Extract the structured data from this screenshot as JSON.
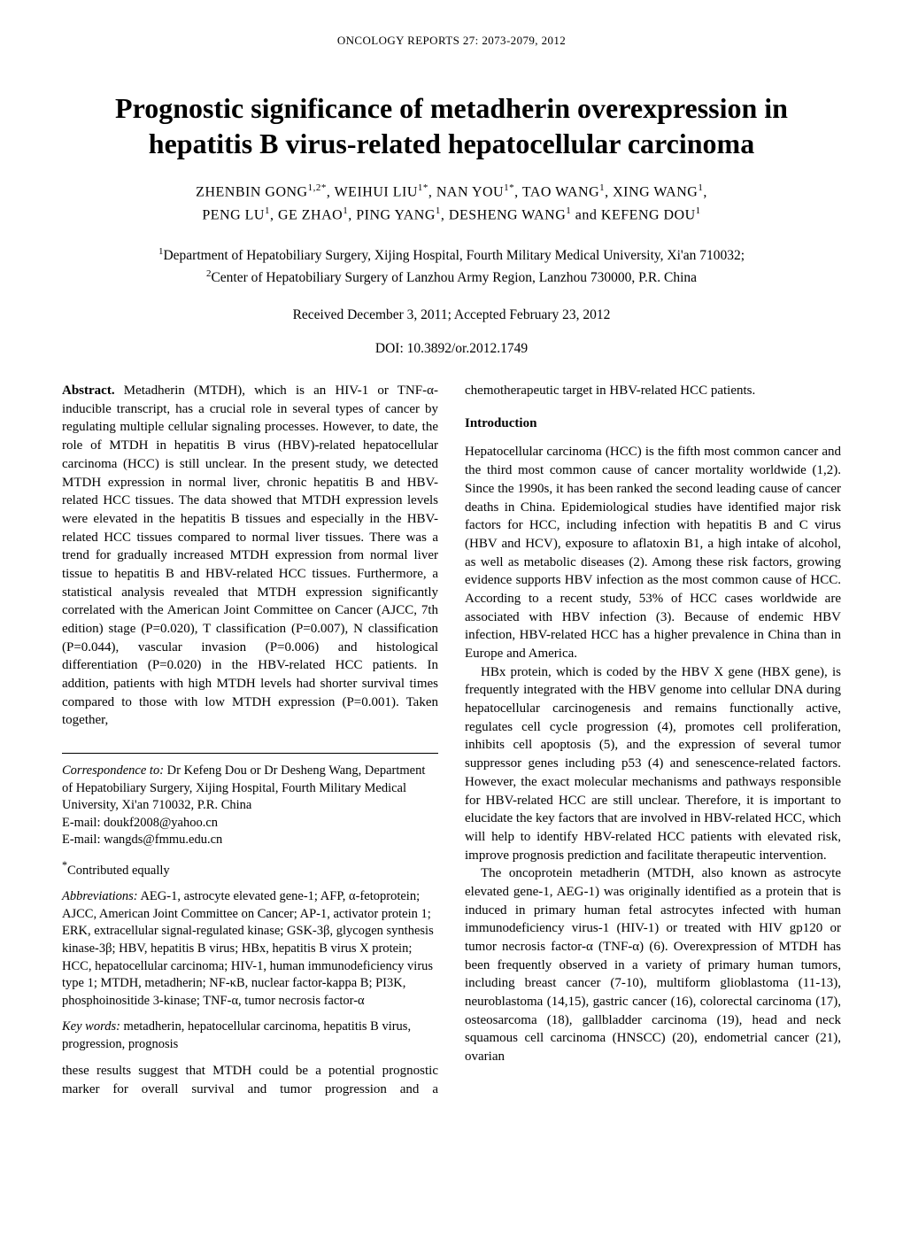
{
  "running_head": "ONCOLOGY REPORTS  27:  2073-2079,  2012",
  "title_line1": "Prognostic significance of metadherin overexpression in",
  "title_line2": "hepatitis B virus-related hepatocellular carcinoma",
  "authors_line1": "ZHENBIN GONG",
  "authors_sup1": "1,2*",
  "authors_line1b": ",  WEIHUI LIU",
  "authors_sup2": "1*",
  "authors_line1c": ",  NAN YOU",
  "authors_sup3": "1*",
  "authors_line1d": ",  TAO WANG",
  "authors_sup4": "1",
  "authors_line1e": ",  XING WANG",
  "authors_sup5": "1",
  "authors_line1f": ",",
  "authors_line2a": "PENG LU",
  "authors_sup6": "1",
  "authors_line2b": ",  GE ZHAO",
  "authors_sup7": "1",
  "authors_line2c": ",  PING YANG",
  "authors_sup8": "1",
  "authors_line2d": ",  DESHENG WANG",
  "authors_sup9": "1",
  "authors_line2e": "  and  KEFENG DOU",
  "authors_sup10": "1",
  "affil1_sup": "1",
  "affil1": "Department of Hepatobiliary Surgery, Xijing Hospital, Fourth Military Medical University, Xi'an 710032;",
  "affil2_sup": "2",
  "affil2": "Center of Hepatobiliary Surgery of Lanzhou Army Region, Lanzhou 730000, P.R. China",
  "dates": "Received December 3, 2011;  Accepted February 23, 2012",
  "doi": "DOI: 10.3892/or.2012.1749",
  "abstract_label": "Abstract.",
  "abstract_body": " Metadherin (MTDH), which is an HIV-1 or TNF-α-inducible transcript, has a crucial role in several types of cancer by regulating multiple cellular signaling processes. However, to date, the role of MTDH in hepatitis B virus (HBV)-related hepatocellular carcinoma (HCC) is still unclear. In the present study, we detected MTDH expression in normal liver, chronic hepatitis B and HBV-related HCC tissues. The data showed that MTDH expression levels were elevated in the hepatitis B tissues and especially in the HBV-related HCC tissues compared to normal liver tissues. There was a trend for gradually increased MTDH expression from normal liver tissue to hepatitis B and HBV-related HCC tissues. Furthermore, a statistical analysis revealed that MTDH expression significantly correlated with the American Joint Committee on Cancer (AJCC, 7th edition) stage (P=0.020), T classification (P=0.007), N classification (P=0.044), vascular invasion (P=0.006) and histological differentiation (P=0.020) in the HBV-related HCC patients. In addition, patients with high MTDH levels had shorter survival times compared to those with low MTDH expression (P=0.001). Taken together,",
  "footnote_corr_label": "Correspondence to:",
  "footnote_corr_body": " Dr Kefeng Dou or Dr Desheng Wang, Department of Hepatobiliary Surgery, Xijing Hospital, Fourth Military Medical University, Xi'an 710032, P.R. China",
  "footnote_email1": "E-mail: doukf2008@yahoo.cn",
  "footnote_email2": "E-mail: wangds@fmmu.edu.cn",
  "footnote_contrib_sup": "*",
  "footnote_contrib": "Contributed equally",
  "footnote_abbrev_label": "Abbreviations:",
  "footnote_abbrev_body": " AEG-1, astrocyte elevated gene-1; AFP, α-fetoprotein; AJCC, American Joint Committee on Cancer; AP-1, activator protein 1; ERK, extracellular signal-regulated kinase; GSK-3β, glycogen synthesis kinase-3β; HBV, hepatitis B virus; HBx, hepatitis B virus X protein; HCC, hepatocellular carcinoma; HIV-1, human immunodeficiency virus type 1; MTDH, metadherin; NF-κB, nuclear factor-kappa B; PI3K, phosphoinositide 3-kinase; TNF-α, tumor necrosis factor-α",
  "footnote_kw_label": "Key words:",
  "footnote_kw_body": " metadherin, hepatocellular carcinoma, hepatitis B virus, progression, prognosis",
  "abstract_tail": "these results suggest that MTDH could be a potential prognostic marker for overall survival and tumor progression and a chemotherapeutic target in HBV-related HCC patients.",
  "intro_heading": "Introduction",
  "intro_p1": "Hepatocellular carcinoma (HCC) is the fifth most common cancer and the third most common cause of cancer mortality worldwide (1,2). Since the 1990s, it has been ranked the second leading cause of cancer deaths in China. Epidemiological studies have identified major risk factors for HCC, including infection with hepatitis B and C virus (HBV and HCV), exposure to aflatoxin B1, a high intake of alcohol, as well as metabolic diseases (2). Among these risk factors, growing evidence supports HBV infection as the most common cause of HCC. According to a recent study, 53% of HCC cases worldwide are associated with HBV infection (3). Because of endemic HBV infection, HBV-related HCC has a higher prevalence in China than in Europe and America.",
  "intro_p2": "HBx protein, which is coded by the HBV X gene (HBX gene), is frequently integrated with the HBV genome into cellular DNA during hepatocellular carcinogenesis and remains functionally active, regulates cell cycle progression (4), promotes cell proliferation, inhibits cell apoptosis (5), and the expression of several tumor suppressor genes including p53 (4) and senescence-related factors. However, the exact molecular mechanisms and pathways responsible for HBV-related HCC are still unclear. Therefore, it is important to elucidate the key factors that are involved in HBV-related HCC, which will help to identify HBV-related HCC patients with elevated risk, improve prognosis prediction and facilitate therapeutic intervention.",
  "intro_p3": "The oncoprotein metadherin (MTDH, also known as astrocyte elevated gene-1, AEG-1) was originally identified as a protein that is induced in primary human fetal astrocytes infected with human immunodeficiency virus-1 (HIV-1) or treated with HIV gp120 or tumor necrosis factor-α (TNF-α) (6). Overexpression of MTDH has been frequently observed in a variety of primary human tumors, including breast cancer (7-10), multiform glioblastoma (11-13), neuroblastoma (14,15), gastric cancer (16), colorectal carcinoma (17), osteosarcoma (18), gallbladder carcinoma (19), head and neck squamous cell carcinoma (HNSCC) (20), endometrial cancer (21), ovarian"
}
